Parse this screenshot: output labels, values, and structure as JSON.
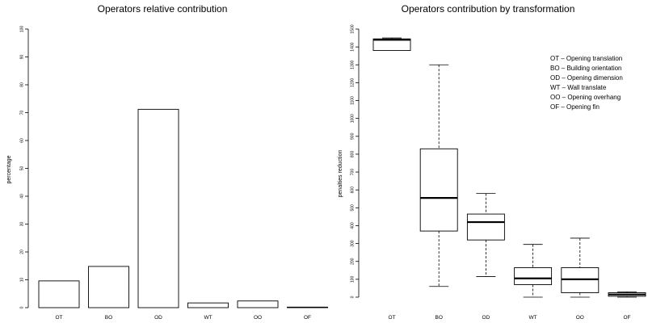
{
  "chart_data": [
    {
      "type": "bar",
      "title": "Operators relative contribution",
      "xlabel": "",
      "ylabel": "percentage",
      "ylim": [
        0,
        100
      ],
      "yticks": [
        0,
        10,
        20,
        30,
        40,
        50,
        60,
        70,
        80,
        90,
        100
      ],
      "categories": [
        "OT",
        "BO",
        "OD",
        "WT",
        "OO",
        "OF"
      ],
      "values": [
        9.6,
        14.8,
        71.2,
        1.7,
        2.4,
        0.2
      ]
    },
    {
      "type": "box",
      "title": "Operators contribution by transformation",
      "xlabel": "",
      "ylabel": "penalties reduction",
      "ylim": [
        0,
        1500
      ],
      "yticks": [
        0,
        100,
        200,
        300,
        400,
        500,
        600,
        700,
        800,
        900,
        1000,
        1100,
        1200,
        1300,
        1400,
        1500
      ],
      "categories": [
        "OT",
        "BO",
        "OD",
        "WT",
        "OO",
        "OF"
      ],
      "boxes": [
        {
          "min": 1380,
          "q1": 1380,
          "median": 1440,
          "q3": 1445,
          "max": 1450
        },
        {
          "min": 60,
          "q1": 370,
          "median": 555,
          "q3": 830,
          "max": 1300
        },
        {
          "min": 115,
          "q1": 320,
          "median": 420,
          "q3": 465,
          "max": 580
        },
        {
          "min": 0,
          "q1": 70,
          "median": 105,
          "q3": 165,
          "max": 295
        },
        {
          "min": 0,
          "q1": 25,
          "median": 100,
          "q3": 165,
          "max": 330
        },
        {
          "min": 0,
          "q1": 5,
          "median": 15,
          "q3": 25,
          "max": 30
        }
      ],
      "legend_position": "top-right",
      "legend": [
        "OT – Opening translation",
        "BO – Building orientation",
        "OD – Opening dimension",
        "WT – Wall translate",
        "OO – Opening overhang",
        "OF – Opening fin"
      ]
    }
  ]
}
